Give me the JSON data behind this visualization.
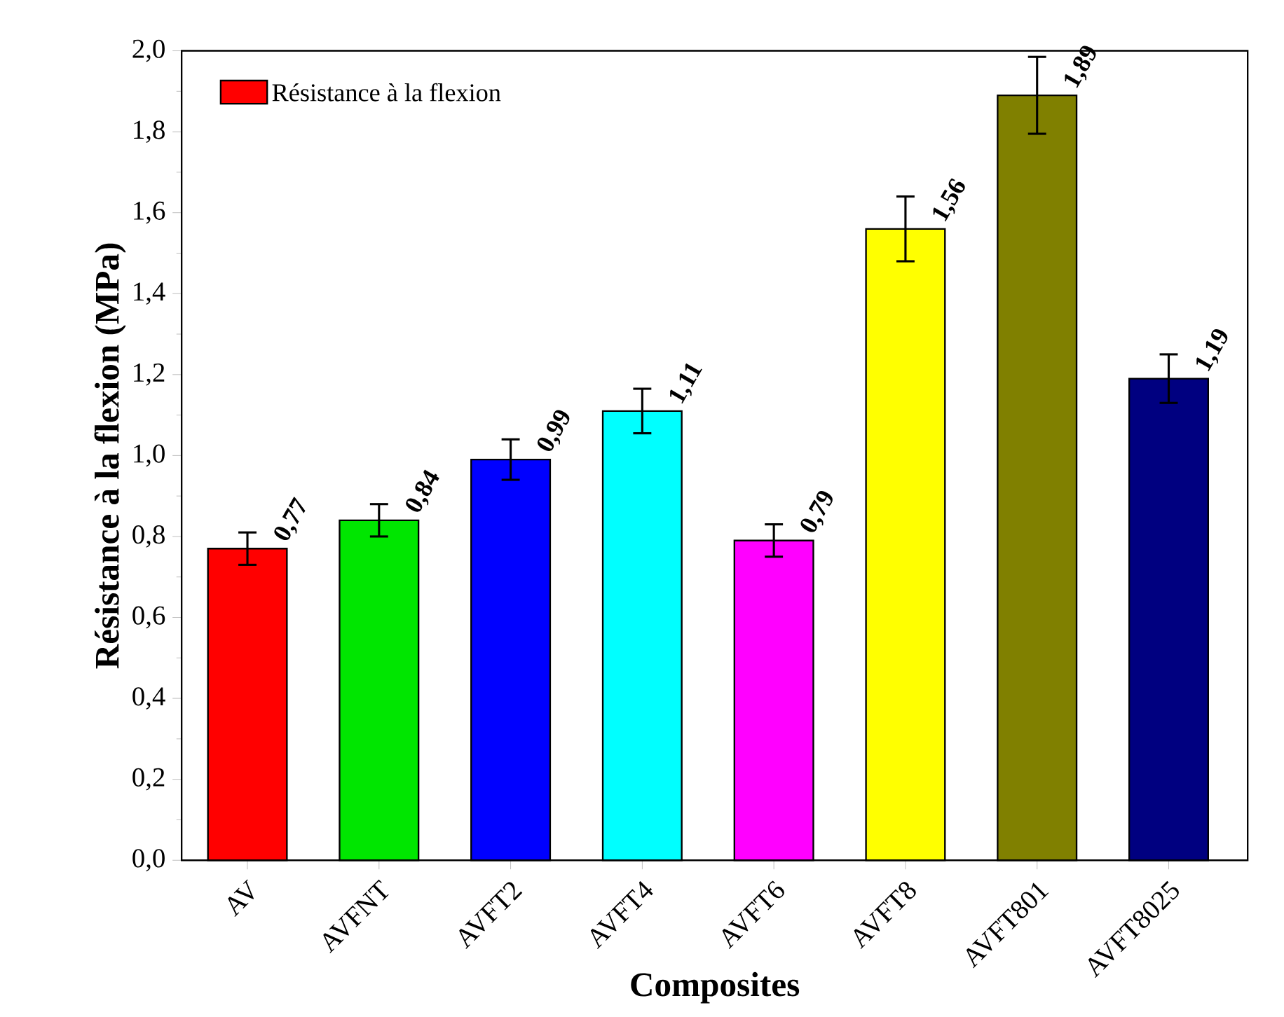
{
  "chart_data": {
    "type": "bar",
    "xlabel": "Composites",
    "ylabel": "Résistance à la flexion (MPa)",
    "categories": [
      "AV",
      "AVFNT",
      "AVFT2",
      "AVFT4",
      "AVFT6",
      "AVFT8",
      "AVFT801",
      "AVFT8025"
    ],
    "series": [
      {
        "name": "Résistance à la flexion",
        "colors": [
          "#ff0000",
          "#00e600",
          "#0000ff",
          "#00ffff",
          "#ff00ff",
          "#ffff00",
          "#808000",
          "#000080"
        ],
        "values": [
          0.77,
          0.84,
          0.99,
          1.11,
          0.79,
          1.56,
          1.89,
          1.19
        ],
        "errors": [
          0.04,
          0.04,
          0.05,
          0.055,
          0.04,
          0.08,
          0.095,
          0.06
        ],
        "value_labels": [
          "0,77",
          "0,84",
          "0,99",
          "1,11",
          "0,79",
          "1,56",
          "1,89",
          "1,19"
        ]
      }
    ],
    "ylim": [
      0,
      2.0
    ],
    "yticks": [
      {
        "value": 0,
        "label": "0,0"
      },
      {
        "value": 0.2,
        "label": "0,2"
      },
      {
        "value": 0.4,
        "label": "0,4"
      },
      {
        "value": 0.6,
        "label": "0,6"
      },
      {
        "value": 0.8,
        "label": "0,8"
      },
      {
        "value": 1.0,
        "label": "1,0"
      },
      {
        "value": 1.2,
        "label": "1,2"
      },
      {
        "value": 1.4,
        "label": "1,4"
      },
      {
        "value": 1.6,
        "label": "1,6"
      },
      {
        "value": 1.8,
        "label": "1,8"
      },
      {
        "value": 2.0,
        "label": "2,0"
      }
    ],
    "legend": "top left"
  }
}
